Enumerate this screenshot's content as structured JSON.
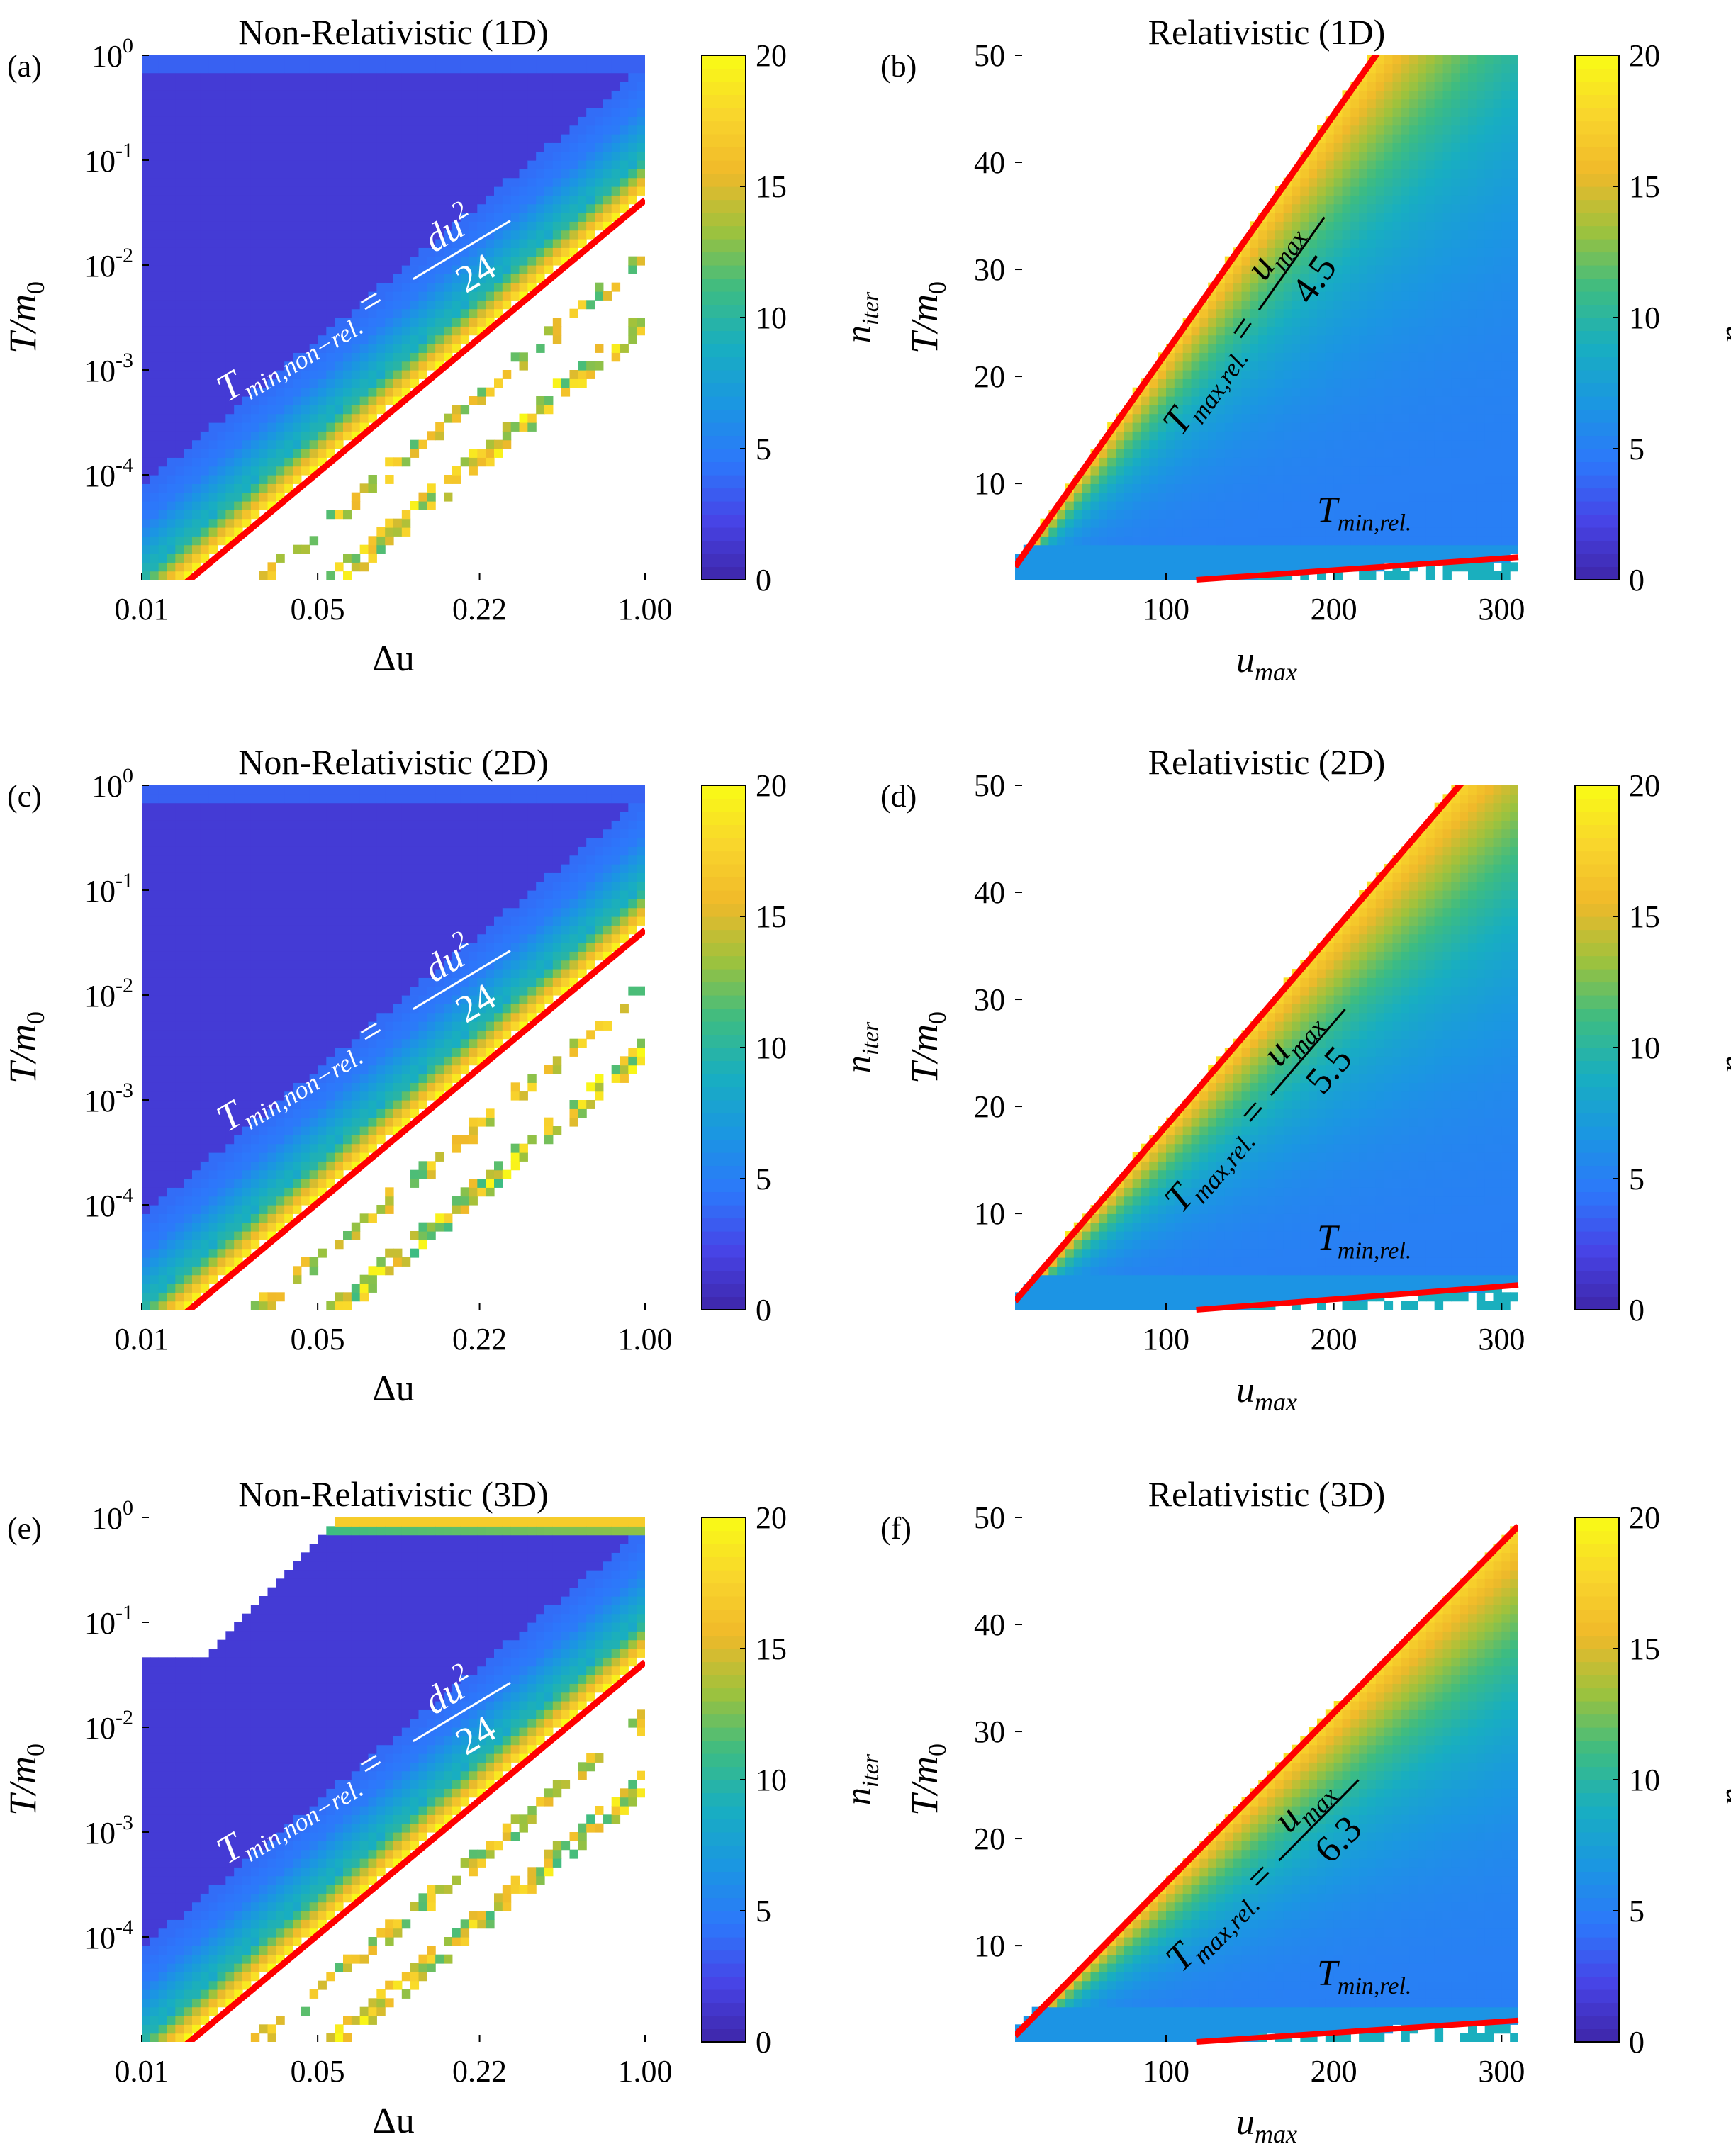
{
  "colormap": [
    "#3e26a8",
    "#4743e6",
    "#2d77fb",
    "#1b96e2",
    "#18aec1",
    "#3dbc82",
    "#9fc23c",
    "#f0b92a",
    "#f9d62c",
    "#f9fb15"
  ],
  "line_color": "#ff0000",
  "chart_data": [
    {
      "panel": "(a)",
      "type": "heatmap",
      "title": "Non-Relativistic (1D)",
      "xlabel": "Δu",
      "ylabel": "T/m₀",
      "xscale": "log",
      "yscale": "log",
      "xlim": [
        0.01,
        1.0
      ],
      "ylim": [
        1e-05,
        1
      ],
      "xticks": [
        0.01,
        0.05,
        0.22,
        1.0
      ],
      "xtick_labels": [
        "0.01",
        "0.05",
        "0.22",
        "1.00"
      ],
      "yticks": [
        1,
        0.1,
        0.01,
        0.001,
        0.0001
      ],
      "ytick_labels": [
        [
          "10",
          "0"
        ],
        [
          "10",
          "-1"
        ],
        [
          "10",
          "-2"
        ],
        [
          "10",
          "-3"
        ],
        [
          "10",
          "-4"
        ]
      ],
      "colorbar": {
        "label": "n_iter",
        "range": [
          0,
          20
        ],
        "ticks": [
          0,
          5,
          10,
          15,
          20
        ],
        "tick_labels": [
          "0",
          "5",
          "10",
          "15",
          "20"
        ]
      },
      "regime": "nonrel",
      "dim": 1,
      "fit_line": {
        "formula": "T_min,non-rel. = du² / 24",
        "coef": 0.0417,
        "power": 2
      },
      "annotation": {
        "lhs": "T",
        "lhs_sub": "min,non−rel.",
        "eq": "=",
        "num": "du",
        "num_sup": "2",
        "den": "24"
      }
    },
    {
      "panel": "(b)",
      "type": "heatmap",
      "title": "Relativistic (1D)",
      "xlabel": "u_max",
      "ylabel": "T/m₀",
      "xscale": "linear",
      "yscale": "linear",
      "xlim": [
        10,
        310
      ],
      "ylim": [
        1,
        50
      ],
      "xticks": [
        100,
        200,
        300
      ],
      "xtick_labels": [
        "100",
        "200",
        "300"
      ],
      "yticks": [
        10,
        20,
        30,
        40,
        50
      ],
      "ytick_labels": [
        "10",
        "20",
        "30",
        "40",
        "50"
      ],
      "colorbar": {
        "label": "n_iter",
        "range": [
          0,
          20
        ],
        "ticks": [
          0,
          5,
          10,
          15,
          20
        ],
        "tick_labels": [
          "0",
          "5",
          "10",
          "15",
          "20"
        ]
      },
      "regime": "rel",
      "dim": 1,
      "fit_line": {
        "formula": "T_max,rel. = u_max / 4.5",
        "divisor": 4.5
      },
      "min_line": {
        "label": "T_min,rel.",
        "from": [
          118,
          1.0
        ],
        "to": [
          310,
          3.1
        ]
      },
      "annotation": {
        "lhs": "T",
        "lhs_sub": "max,rel.",
        "eq": "=",
        "num": "u",
        "num_sub": "max",
        "den": "4.5"
      },
      "min_annotation": {
        "lhs": "T",
        "lhs_sub": "min,rel."
      }
    },
    {
      "panel": "(c)",
      "type": "heatmap",
      "title": "Non-Relativistic (2D)",
      "xlabel": "Δu",
      "ylabel": "T/m₀",
      "xscale": "log",
      "yscale": "log",
      "xlim": [
        0.01,
        1.0
      ],
      "ylim": [
        1e-05,
        1
      ],
      "xticks": [
        0.01,
        0.05,
        0.22,
        1.0
      ],
      "xtick_labels": [
        "0.01",
        "0.05",
        "0.22",
        "1.00"
      ],
      "yticks": [
        1,
        0.1,
        0.01,
        0.001,
        0.0001
      ],
      "ytick_labels": [
        [
          "10",
          "0"
        ],
        [
          "10",
          "-1"
        ],
        [
          "10",
          "-2"
        ],
        [
          "10",
          "-3"
        ],
        [
          "10",
          "-4"
        ]
      ],
      "colorbar": {
        "label": "n_iter",
        "range": [
          0,
          20
        ],
        "ticks": [
          0,
          5,
          10,
          15,
          20
        ],
        "tick_labels": [
          "0",
          "5",
          "10",
          "15",
          "20"
        ]
      },
      "regime": "nonrel",
      "dim": 2,
      "fit_line": {
        "formula": "T_min,non-rel. = du² / 24",
        "coef": 0.0417,
        "power": 2
      },
      "annotation": {
        "lhs": "T",
        "lhs_sub": "min,non−rel.",
        "eq": "=",
        "num": "du",
        "num_sup": "2",
        "den": "24"
      }
    },
    {
      "panel": "(d)",
      "type": "heatmap",
      "title": "Relativistic (2D)",
      "xlabel": "u_max",
      "ylabel": "T/m₀",
      "xscale": "linear",
      "yscale": "linear",
      "xlim": [
        10,
        310
      ],
      "ylim": [
        1,
        50
      ],
      "xticks": [
        100,
        200,
        300
      ],
      "xtick_labels": [
        "100",
        "200",
        "300"
      ],
      "yticks": [
        10,
        20,
        30,
        40,
        50
      ],
      "ytick_labels": [
        "10",
        "20",
        "30",
        "40",
        "50"
      ],
      "colorbar": {
        "label": "n_iter",
        "range": [
          0,
          20
        ],
        "ticks": [
          0,
          5,
          10,
          15,
          20
        ],
        "tick_labels": [
          "0",
          "5",
          "10",
          "15",
          "20"
        ]
      },
      "regime": "rel",
      "dim": 2,
      "fit_line": {
        "formula": "T_max,rel. = u_max / 5.5",
        "divisor": 5.5
      },
      "min_line": {
        "label": "T_min,rel.",
        "from": [
          118,
          1.0
        ],
        "to": [
          310,
          3.3
        ]
      },
      "annotation": {
        "lhs": "T",
        "lhs_sub": "max,rel.",
        "eq": "=",
        "num": "u",
        "num_sub": "max",
        "den": "5.5"
      },
      "min_annotation": {
        "lhs": "T",
        "lhs_sub": "min,rel."
      }
    },
    {
      "panel": "(e)",
      "type": "heatmap",
      "title": "Non-Relativistic (3D)",
      "xlabel": "Δu",
      "ylabel": "T/m₀",
      "xscale": "log",
      "yscale": "log",
      "xlim": [
        0.01,
        1.0
      ],
      "ylim": [
        1e-05,
        1
      ],
      "xticks": [
        0.01,
        0.05,
        0.22,
        1.0
      ],
      "xtick_labels": [
        "0.01",
        "0.05",
        "0.22",
        "1.00"
      ],
      "yticks": [
        1,
        0.1,
        0.01,
        0.001,
        0.0001
      ],
      "ytick_labels": [
        [
          "10",
          "0"
        ],
        [
          "10",
          "-1"
        ],
        [
          "10",
          "-2"
        ],
        [
          "10",
          "-3"
        ],
        [
          "10",
          "-4"
        ]
      ],
      "colorbar": {
        "label": "n_iter",
        "range": [
          0,
          20
        ],
        "ticks": [
          0,
          5,
          10,
          15,
          20
        ],
        "tick_labels": [
          "0",
          "5",
          "10",
          "15",
          "20"
        ]
      },
      "regime": "nonrel",
      "dim": 3,
      "fit_line": {
        "formula": "T_min,non-rel. = du² / 24",
        "coef": 0.0417,
        "power": 2
      },
      "annotation": {
        "lhs": "T",
        "lhs_sub": "min,non−rel.",
        "eq": "=",
        "num": "du",
        "num_sup": "2",
        "den": "24"
      }
    },
    {
      "panel": "(f)",
      "type": "heatmap",
      "title": "Relativistic (3D)",
      "xlabel": "u_max",
      "ylabel": "T/m₀",
      "xscale": "linear",
      "yscale": "linear",
      "xlim": [
        10,
        310
      ],
      "ylim": [
        1,
        50
      ],
      "xticks": [
        100,
        200,
        300
      ],
      "xtick_labels": [
        "100",
        "200",
        "300"
      ],
      "yticks": [
        10,
        20,
        30,
        40,
        50
      ],
      "ytick_labels": [
        "10",
        "20",
        "30",
        "40",
        "50"
      ],
      "colorbar": {
        "label": "n_iter",
        "range": [
          0,
          20
        ],
        "ticks": [
          0,
          5,
          10,
          15,
          20
        ],
        "tick_labels": [
          "0",
          "5",
          "10",
          "15",
          "20"
        ]
      },
      "regime": "rel",
      "dim": 3,
      "fit_line": {
        "formula": "T_max,rel. = u_max / 6.3",
        "divisor": 6.3
      },
      "min_line": {
        "label": "T_min,rel.",
        "from": [
          118,
          1.0
        ],
        "to": [
          310,
          3.0
        ]
      },
      "annotation": {
        "lhs": "T",
        "lhs_sub": "max,rel.",
        "eq": "=",
        "num": "u",
        "num_sub": "max",
        "den": "6.3"
      },
      "min_annotation": {
        "lhs": "T",
        "lhs_sub": "min,rel."
      }
    }
  ]
}
